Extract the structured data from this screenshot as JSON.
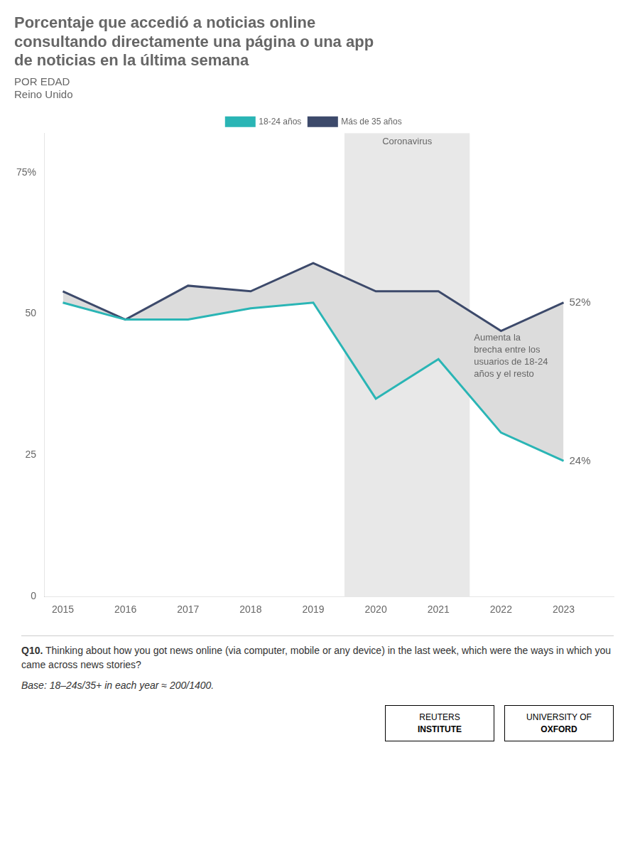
{
  "chart_data": {
    "type": "line",
    "title": [
      "Porcentaje que accedió a noticias online",
      "consultando directamente una página o una app",
      "de noticias en la última semana"
    ],
    "subtitle": [
      "POR EDAD",
      "Reino Unido"
    ],
    "x": [
      2015,
      2016,
      2017,
      2018,
      2019,
      2020,
      2021,
      2022,
      2023
    ],
    "series": [
      {
        "name": "18-24 años",
        "color": "#2ab5b5",
        "values": [
          52,
          49,
          49,
          51,
          52,
          35,
          42,
          29,
          24
        ],
        "value_labels": [
          null,
          null,
          null,
          null,
          null,
          null,
          null,
          null,
          "24%"
        ]
      },
      {
        "name": "Más de 35 años",
        "color": "#3d4a6b",
        "values": [
          54,
          49,
          55,
          54,
          59,
          54,
          54,
          47,
          52
        ],
        "value_labels": [
          null,
          null,
          null,
          null,
          null,
          null,
          null,
          null,
          "52%"
        ]
      }
    ],
    "xlim": [
      2014.7,
      2023.8
    ],
    "xticks": [
      2015,
      2016,
      2017,
      2018,
      2019,
      2020,
      2021,
      2022,
      2023
    ],
    "ylim": [
      0,
      82
    ],
    "yticks": [
      0,
      25,
      50,
      {
        "value": 75,
        "label": "75%"
      }
    ],
    "grid": false,
    "legend": "top",
    "bands": [
      {
        "x_start": 2019.5,
        "x_end": 2021.5,
        "color": "#e8e8e8",
        "label": "Coronavirus"
      }
    ],
    "gap_fill_color": "#dcdcdc",
    "gap_annotation": "Aumenta la\nbrecha entre los\nusuarios de 18-24\naños y el resto",
    "footnote": [
      [
        {
          "text": "Q10.",
          "style": "bold"
        },
        {
          "text": " Thinking about how you got news online (via computer, mobile or any device) in the last week, which were the ways in which you came across news stories?",
          "style": "normal"
        }
      ],
      [
        {
          "text": " Base: 18–24s/35+ in each year ≈ 200/1400.",
          "style": "italic"
        }
      ]
    ],
    "logos": [
      [
        "REUTERS",
        "INSTITUTE"
      ],
      [
        "UNIVERSITY OF",
        "OXFORD"
      ]
    ]
  }
}
